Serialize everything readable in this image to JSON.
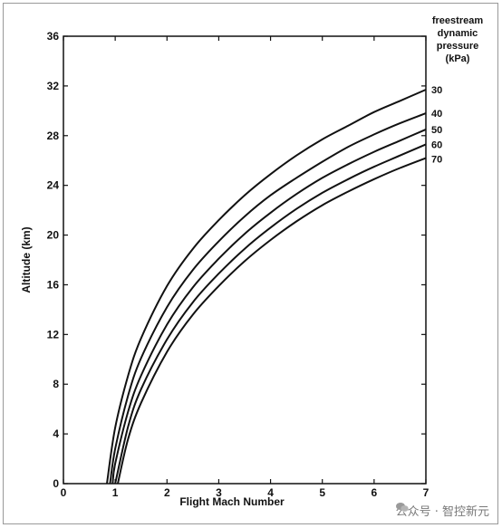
{
  "chart_data": {
    "type": "line",
    "title": "",
    "xlabel": "Flight Mach Number",
    "ylabel": "Altitude (km)",
    "xlim": [
      0,
      7
    ],
    "ylim": [
      0,
      36
    ],
    "xticks": [
      0,
      1,
      2,
      3,
      4,
      5,
      6,
      7
    ],
    "yticks": [
      0,
      4,
      8,
      12,
      16,
      20,
      24,
      28,
      32,
      36
    ],
    "legend_title": "freestream dynamic pressure (kPa)",
    "legend_title_lines": [
      "freestream",
      "dynamic",
      "pressure",
      "(kPa)"
    ],
    "grid": false,
    "series": [
      {
        "name": "30",
        "x": [
          0.84,
          1.0,
          1.25,
          1.5,
          2,
          2.5,
          3,
          3.5,
          4,
          4.5,
          5,
          5.5,
          6,
          6.5,
          7
        ],
        "y": [
          0,
          4.5,
          8.7,
          11.7,
          15.9,
          18.9,
          21.2,
          23.2,
          24.9,
          26.4,
          27.7,
          28.8,
          29.9,
          30.8,
          31.7
        ]
      },
      {
        "name": "40",
        "x": [
          0.9,
          1.0,
          1.25,
          1.5,
          2,
          2.5,
          3,
          3.5,
          4,
          4.5,
          5,
          5.5,
          6,
          6.5,
          7
        ],
        "y": [
          0,
          2.8,
          7.1,
          10.1,
          14.2,
          17.2,
          19.5,
          21.5,
          23.2,
          24.6,
          25.9,
          27.1,
          28.1,
          29.0,
          29.8
        ]
      },
      {
        "name": "50",
        "x": [
          0.95,
          1.0,
          1.25,
          1.5,
          2,
          2.5,
          3,
          3.5,
          4,
          4.5,
          5,
          5.5,
          6,
          6.5,
          7
        ],
        "y": [
          0,
          1.6,
          5.8,
          8.7,
          12.8,
          15.8,
          18.1,
          20.1,
          21.8,
          23.3,
          24.6,
          25.7,
          26.7,
          27.6,
          28.5
        ]
      },
      {
        "name": "60",
        "x": [
          1.0,
          1.25,
          1.5,
          2,
          2.5,
          3,
          3.5,
          4,
          4.5,
          5,
          5.5,
          6,
          6.5,
          7
        ],
        "y": [
          0,
          4.6,
          7.6,
          11.6,
          14.6,
          16.9,
          18.9,
          20.6,
          22.1,
          23.4,
          24.5,
          25.5,
          26.4,
          27.3
        ]
      },
      {
        "name": "70",
        "x": [
          1.05,
          1.25,
          1.5,
          2,
          2.5,
          3,
          3.5,
          4,
          4.5,
          5,
          5.5,
          6,
          6.5,
          7
        ],
        "y": [
          0,
          3.6,
          6.5,
          10.6,
          13.6,
          15.9,
          17.9,
          19.6,
          21.1,
          22.4,
          23.5,
          24.5,
          25.4,
          26.2
        ]
      }
    ]
  },
  "watermark": {
    "text": "公众号 · 智控新元"
  }
}
